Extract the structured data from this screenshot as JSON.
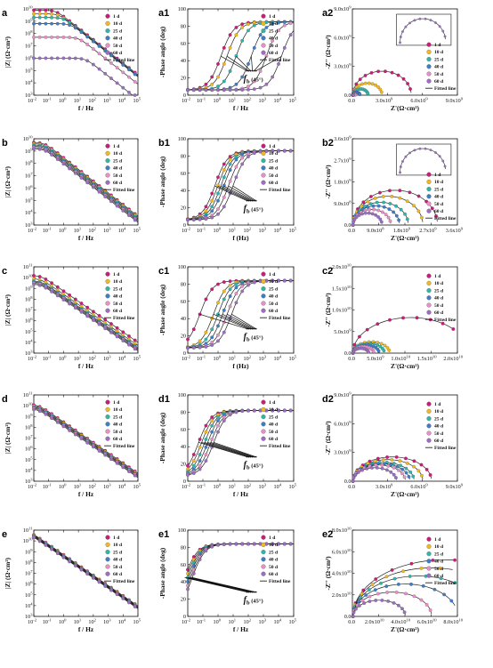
{
  "legend": {
    "labels": [
      "1 d",
      "10 d",
      "25 d",
      "40 d",
      "50 d",
      "60 d"
    ],
    "fitted": "Fitted line"
  },
  "colors": {
    "series": [
      "#cc1b7a",
      "#f2b91c",
      "#2db7a9",
      "#3d7dc9",
      "#e98fc5",
      "#9b6fc0"
    ],
    "fit": "#222222"
  },
  "marker": {
    "text": "f",
    "sub": "b",
    "suffix": " (45°)"
  },
  "rows": [
    {
      "bode": {
        "panel": "a",
        "ylabel": "|Z| (Ω·cm²)",
        "xlabel": "f / Hz",
        "ymin": 3,
        "ymax": 10,
        "logZ0": [
          9.9,
          9.6,
          9.3,
          8.8,
          7.7,
          6.0
        ],
        "f_corner": [
          0.3,
          0.5,
          1.0,
          3.0,
          10.0,
          30.0
        ]
      },
      "phase": {
        "panel": "a1",
        "ylabel": "-Phase angle (deg)",
        "xlabel": "f / Hz",
        "ymax": 100,
        "centers": [
          0.2,
          0.6,
          1.2,
          2.2,
          3.2,
          4.2
        ],
        "peak": 85
      },
      "nyq": {
        "panel": "a2",
        "ylabel": "-Z'' (Ω·cm²)",
        "xlabel": "Z'(Ω·cm²)",
        "max": 9000000000.0,
        "ticks": [
          "0.0",
          "3.0x10^9",
          "6.0x10^9",
          "9.0x10^9"
        ],
        "R": [
          5000000000.0,
          2500000000.0,
          1300000000.0,
          600000000.0,
          200000000.0,
          50000000.0
        ],
        "inset": true
      }
    },
    {
      "bode": {
        "panel": "b",
        "ylabel": "|Z| (Ω·cm²)",
        "xlabel": "f / Hz",
        "ymin": 3,
        "ymax": 10,
        "logZ0": [
          9.7,
          9.6,
          9.5,
          9.4,
          9.3,
          9.2
        ],
        "f_corner": [
          0.05,
          0.05,
          0.05,
          0.05,
          0.05,
          0.05
        ]
      },
      "phase": {
        "panel": "b1",
        "ylabel": "-Phase angle (deg)",
        "xlabel": "f (Hz)",
        "ymax": 100,
        "centers": [
          -0.2,
          0.0,
          0.2,
          0.4,
          0.7,
          1.0
        ],
        "peak": 86
      },
      "nyq": {
        "panel": "b2",
        "ylabel": "-Z'' (Ω·cm²)",
        "xlabel": "Z'(Ω·cm²)",
        "max": 3600000000.0,
        "ticks": [
          "0.0",
          "9.0x10^8",
          "1.8x10^9",
          "2.7x10^9",
          "3.6x10^9"
        ],
        "R": [
          2900000000.0,
          2400000000.0,
          1900000000.0,
          1600000000.0,
          1300000000.0,
          1000000000.0
        ],
        "inset": true
      }
    },
    {
      "bode": {
        "panel": "c",
        "ylabel": "|Z| (Ω·cm²)",
        "xlabel": "f / Hz",
        "ymin": 3,
        "ymax": 11,
        "logZ0": [
          10.2,
          9.9,
          9.7,
          9.6,
          9.5,
          9.4
        ],
        "f_corner": [
          0.03,
          0.03,
          0.03,
          0.03,
          0.03,
          0.03
        ]
      },
      "phase": {
        "panel": "c1",
        "ylabel": "-Phase angle (deg)",
        "xlabel": "f (Hz)",
        "ymax": 100,
        "centers": [
          -1.2,
          -0.3,
          0.0,
          0.3,
          0.6,
          0.9
        ],
        "peak": 84
      },
      "nyq": {
        "panel": "c2",
        "ylabel": "-Z'' (Ω·cm²)",
        "xlabel": "Z'(Ω·cm²)",
        "max": 20000000000.0,
        "ticks": [
          "0.0",
          "5.0x10^9",
          "1.0x10^10",
          "1.5x10^10",
          "2.0x10^10"
        ],
        "R": [
          22000000000.0,
          7000000000.0,
          6000000000.0,
          5000000000.0,
          4000000000.0,
          3000000000.0
        ],
        "inset": false
      }
    },
    {
      "bode": {
        "panel": "d",
        "ylabel": "|Z| (Ω·cm²)",
        "xlabel": "f / Hz",
        "ymin": 3,
        "ymax": 11,
        "logZ0": [
          10.1,
          10.0,
          9.9,
          9.9,
          9.8,
          9.7
        ],
        "f_corner": [
          0.02,
          0.02,
          0.02,
          0.02,
          0.02,
          0.02
        ]
      },
      "phase": {
        "panel": "d1",
        "ylabel": "-Phase angle (deg)",
        "xlabel": "f / Hz",
        "ymax": 100,
        "centers": [
          -1.3,
          -1.1,
          -0.9,
          -0.7,
          -0.5,
          -0.3
        ],
        "peak": 82
      },
      "nyq": {
        "panel": "d2",
        "ylabel": "-Z'' (Ω·cm²)",
        "xlabel": "Z'(Ω·cm²)",
        "max": 12000000000.0,
        "ticks": [
          "0.0",
          "3.0x10^9",
          "6.0x10^9",
          "9.0x10^9"
        ],
        "R": [
          9000000000.0,
          8000000000.0,
          7000000000.0,
          6500000000.0,
          6000000000.0,
          5000000000.0
        ],
        "inset": false
      }
    },
    {
      "bode": {
        "panel": "e",
        "ylabel": "|Z| (Ω·cm²)",
        "xlabel": "f / Hz",
        "ymin": 3,
        "ymax": 11,
        "logZ0": [
          10.9,
          10.85,
          10.8,
          10.75,
          10.7,
          10.65
        ],
        "f_corner": [
          0.005,
          0.005,
          0.005,
          0.005,
          0.005,
          0.005
        ]
      },
      "phase": {
        "panel": "e1",
        "ylabel": "-Phase angle (deg)",
        "xlabel": "f / Hz",
        "ymax": 100,
        "centers": [
          -2.2,
          -2.1,
          -2.0,
          -1.9,
          -1.8,
          -1.7
        ],
        "peak": 84
      },
      "nyq": {
        "panel": "e2",
        "ylabel": "-Z'' (Ω·cm²)",
        "xlabel": "Z'(Ω·cm²)",
        "max": 80000000000.0,
        "ticks": [
          "0.0",
          "2.0x10^10",
          "4.0x10^10",
          "6.0x10^10",
          "8.0x10^10"
        ],
        "R": [
          140000000000.0,
          120000000000.0,
          100000000000.0,
          80000000000.0,
          60000000000.0,
          40000000000.0
        ],
        "inset": false
      }
    }
  ],
  "chart_data": [
    {
      "type": "line",
      "panel": "a",
      "xlabel": "f / Hz",
      "ylabel": "|Z| (Ω·cm²)",
      "xscale": "log",
      "xlim": [
        0.01,
        100000
      ],
      "ylim_log10": [
        3,
        10
      ],
      "series": [
        {
          "name": "1 d",
          "logZ_lowfreq": 9.9
        },
        {
          "name": "10 d",
          "logZ_lowfreq": 9.6
        },
        {
          "name": "25 d",
          "logZ_lowfreq": 9.3
        },
        {
          "name": "40 d",
          "logZ_lowfreq": 8.8
        },
        {
          "name": "50 d",
          "logZ_lowfreq": 7.7
        },
        {
          "name": "60 d",
          "logZ_lowfreq": 6.0
        }
      ]
    },
    {
      "type": "line",
      "panel": "a1",
      "xlabel": "f / Hz",
      "ylabel": "-Phase angle (deg)",
      "xscale": "log",
      "xlim": [
        0.01,
        100000
      ],
      "ylim": [
        0,
        100
      ]
    },
    {
      "type": "scatter",
      "panel": "a2",
      "xlabel": "Z'(Ω·cm²)",
      "ylabel": "-Z'' (Ω·cm²)",
      "xlim": [
        0,
        9000000000.0
      ],
      "ylim": [
        0,
        9000000000.0
      ]
    },
    {
      "type": "line",
      "panel": "b",
      "xlabel": "f / Hz",
      "ylabel": "|Z| (Ω·cm²)",
      "xscale": "log",
      "xlim": [
        0.01,
        100000
      ],
      "ylim_log10": [
        3,
        10
      ]
    },
    {
      "type": "line",
      "panel": "b1",
      "xlabel": "f (Hz)",
      "ylabel": "-Phase angle (deg)",
      "xscale": "log",
      "xlim": [
        0.01,
        100000
      ],
      "ylim": [
        0,
        100
      ]
    },
    {
      "type": "scatter",
      "panel": "b2",
      "xlabel": "Z'(Ω·cm²)",
      "ylabel": "-Z'' (Ω·cm²)",
      "xlim": [
        0,
        3600000000.0
      ],
      "ylim": [
        0,
        3600000000.0
      ]
    },
    {
      "type": "line",
      "panel": "c",
      "xlabel": "f / Hz",
      "ylabel": "|Z| (Ω·cm²)",
      "xscale": "log",
      "xlim": [
        0.01,
        100000
      ],
      "ylim_log10": [
        3,
        11
      ]
    },
    {
      "type": "line",
      "panel": "c1",
      "xlabel": "f (Hz)",
      "ylabel": "-Phase angle (deg)",
      "xscale": "log",
      "xlim": [
        0.01,
        100000
      ],
      "ylim": [
        0,
        100
      ]
    },
    {
      "type": "scatter",
      "panel": "c2",
      "xlabel": "Z'(Ω·cm²)",
      "ylabel": "-Z'' (Ω·cm²)",
      "xlim": [
        0,
        20000000000.0
      ],
      "ylim": [
        0,
        20000000000.0
      ]
    },
    {
      "type": "line",
      "panel": "d",
      "xlabel": "f / Hz",
      "ylabel": "|Z| (Ω·cm²)",
      "xscale": "log",
      "xlim": [
        0.01,
        100000
      ],
      "ylim_log10": [
        3,
        11
      ]
    },
    {
      "type": "line",
      "panel": "d1",
      "xlabel": "f / Hz",
      "ylabel": "-Phase angle (deg)",
      "xscale": "log",
      "xlim": [
        0.01,
        100000
      ],
      "ylim": [
        0,
        100
      ]
    },
    {
      "type": "scatter",
      "panel": "d2",
      "xlabel": "Z'(Ω·cm²)",
      "ylabel": "-Z'' (Ω·cm²)",
      "xlim": [
        0,
        12000000000.0
      ],
      "ylim": [
        0,
        12000000000.0
      ]
    },
    {
      "type": "line",
      "panel": "e",
      "xlabel": "f / Hz",
      "ylabel": "|Z| (Ω·cm²)",
      "xscale": "log",
      "xlim": [
        0.01,
        100000
      ],
      "ylim_log10": [
        3,
        11
      ]
    },
    {
      "type": "line",
      "panel": "e1",
      "xlabel": "f / Hz",
      "ylabel": "-Phase angle (deg)",
      "xscale": "log",
      "xlim": [
        0.01,
        100000
      ],
      "ylim": [
        0,
        100
      ]
    },
    {
      "type": "scatter",
      "panel": "e2",
      "xlabel": "Z'(Ω·cm²)",
      "ylabel": "-Z'' (Ω·cm²)",
      "xlim": [
        0,
        80000000000.0
      ],
      "ylim": [
        0,
        80000000000.0
      ]
    }
  ]
}
